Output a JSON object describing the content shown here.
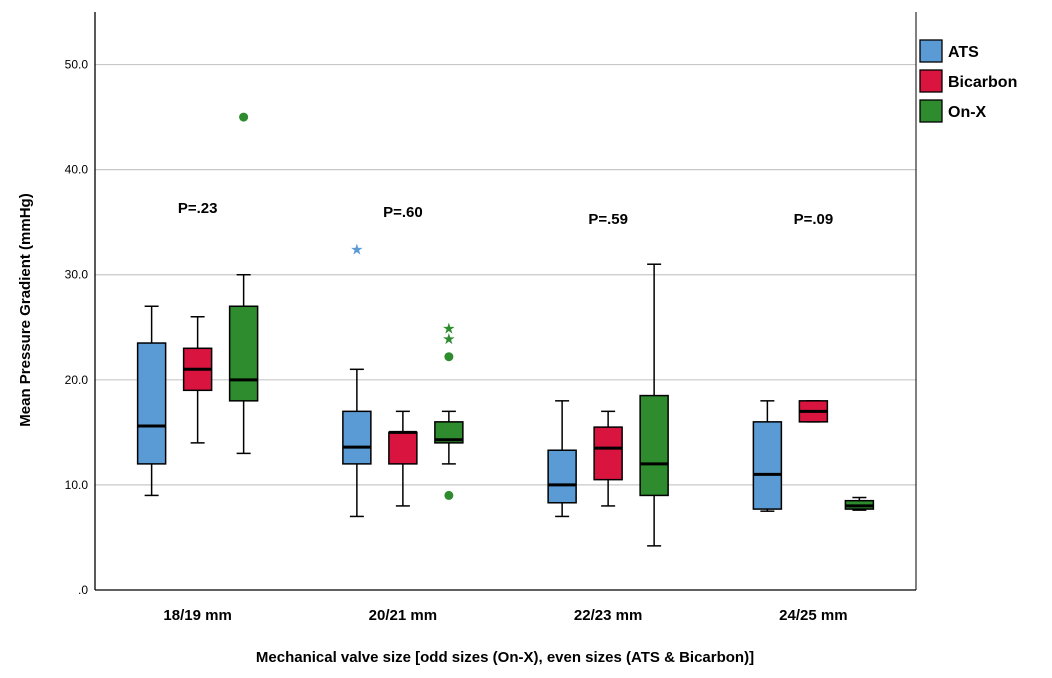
{
  "chart_data": {
    "type": "boxplot",
    "title": "",
    "xlabel": "Mechanical valve size [odd sizes (On-X), even sizes (ATS & Bicarbon)]",
    "ylabel": "Mean Pressure Gradient (mmHg)",
    "ylim": [
      0,
      55
    ],
    "yticks": [
      {
        "value": 0,
        "label": ".0"
      },
      {
        "value": 10,
        "label": "10.0"
      },
      {
        "value": 20,
        "label": "20.0"
      },
      {
        "value": 30,
        "label": "30.0"
      },
      {
        "value": 40,
        "label": "40.0"
      },
      {
        "value": 50,
        "label": "50.0"
      }
    ],
    "grid": "horizontal",
    "legend_position": "top-right",
    "categories": [
      "18/19 mm",
      "20/21 mm",
      "22/23 mm",
      "24/25 mm"
    ],
    "annotations": [
      "P=.23",
      "P=.60",
      "P=.59",
      "P=.09"
    ],
    "series": [
      {
        "name": "ATS",
        "color": "#5b9bd5",
        "boxes": [
          {
            "whisker_low": 9,
            "q1": 12,
            "median": 15.6,
            "q3": 23.5,
            "whisker_high": 27,
            "outliers": [],
            "extremes": []
          },
          {
            "whisker_low": 7,
            "q1": 12,
            "median": 13.6,
            "q3": 17,
            "whisker_high": 21,
            "outliers": [],
            "extremes": [
              32.5
            ]
          },
          {
            "whisker_low": 7,
            "q1": 8.3,
            "median": 10,
            "q3": 13.3,
            "whisker_high": 18,
            "outliers": [],
            "extremes": []
          },
          {
            "whisker_low": 7.5,
            "q1": 7.7,
            "median": 11,
            "q3": 16,
            "whisker_high": 18,
            "outliers": [],
            "extremes": []
          }
        ]
      },
      {
        "name": "Bicarbon",
        "color": "#d9143f",
        "boxes": [
          {
            "whisker_low": 14,
            "q1": 19,
            "median": 21,
            "q3": 23,
            "whisker_high": 26,
            "outliers": [],
            "extremes": []
          },
          {
            "whisker_low": 8,
            "q1": 12,
            "median": 15,
            "q3": 15,
            "whisker_high": 17,
            "outliers": [],
            "extremes": []
          },
          {
            "whisker_low": 8,
            "q1": 10.5,
            "median": 13.5,
            "q3": 15.5,
            "whisker_high": 17,
            "outliers": [],
            "extremes": []
          },
          {
            "whisker_low": 16,
            "q1": 16,
            "median": 17,
            "q3": 18,
            "whisker_high": 18,
            "outliers": [],
            "extremes": []
          }
        ]
      },
      {
        "name": "On-X",
        "color": "#2e8b2e",
        "boxes": [
          {
            "whisker_low": 13,
            "q1": 18,
            "median": 20,
            "q3": 27,
            "whisker_high": 30,
            "outliers": [
              45
            ],
            "extremes": []
          },
          {
            "whisker_low": 12,
            "q1": 14,
            "median": 14.3,
            "q3": 16,
            "whisker_high": 17,
            "outliers": [
              22.2,
              9
            ],
            "extremes": [
              25,
              24
            ]
          },
          {
            "whisker_low": 4.2,
            "q1": 9,
            "median": 12,
            "q3": 18.5,
            "whisker_high": 31,
            "outliers": [],
            "extremes": []
          },
          {
            "whisker_low": 7.6,
            "q1": 7.7,
            "median": 8,
            "q3": 8.5,
            "whisker_high": 8.8,
            "outliers": [],
            "extremes": []
          }
        ]
      }
    ]
  }
}
